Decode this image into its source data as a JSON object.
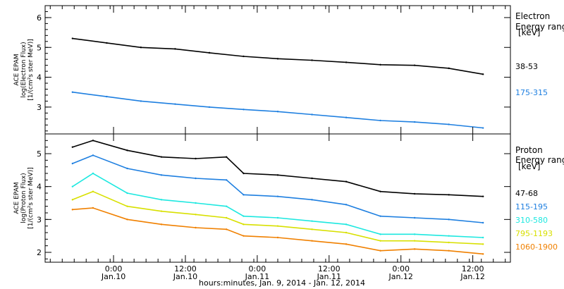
{
  "chart_data": [
    {
      "type": "line",
      "panel": "electron",
      "ylabel": [
        "ACE EPAM",
        "log(Electron Flux)",
        "[1/(cm²s ster MeV)]"
      ],
      "ylim": [
        2.1,
        6.4
      ],
      "yticks": [
        3,
        4,
        5,
        6
      ],
      "legend_title": [
        "Electron",
        "Energy range",
        "[keV]"
      ],
      "series": [
        {
          "name": "38-53",
          "color": "#000000",
          "x": [
            0.0,
            0.5,
            1.0,
            1.5,
            2.0,
            2.5,
            3.0,
            3.5,
            4.0,
            4.5,
            5.0,
            5.5,
            6.0
          ],
          "values": [
            5.3,
            5.15,
            5.0,
            4.95,
            4.82,
            4.7,
            4.62,
            4.57,
            4.5,
            4.42,
            4.4,
            4.3,
            4.1
          ]
        },
        {
          "name": "175-315",
          "color": "#1e7fe0",
          "x": [
            0.0,
            0.5,
            1.0,
            1.5,
            2.0,
            2.5,
            3.0,
            3.5,
            4.0,
            4.5,
            5.0,
            5.5,
            6.0
          ],
          "values": [
            3.5,
            3.35,
            3.2,
            3.1,
            3.0,
            2.92,
            2.85,
            2.75,
            2.65,
            2.55,
            2.5,
            2.42,
            2.3
          ]
        }
      ]
    },
    {
      "type": "line",
      "panel": "proton",
      "ylabel": [
        "ACE EPAM",
        "log(Proton Flux)",
        "[1/(cm²s ster MeV)]"
      ],
      "ylim": [
        1.7,
        5.6
      ],
      "yticks": [
        2,
        3,
        4,
        5
      ],
      "legend_title": [
        "Proton",
        "Energy range",
        "[keV]"
      ],
      "xticks": [
        {
          "time": "0:00",
          "date": "Jan.10"
        },
        {
          "time": "12:00",
          "date": "Jan.10"
        },
        {
          "time": "0:00",
          "date": "Jan.11"
        },
        {
          "time": "12:00",
          "date": "Jan.11"
        },
        {
          "time": "0:00",
          "date": "Jan.12"
        },
        {
          "time": "12:00",
          "date": "Jan.12"
        }
      ],
      "xlabel": "hours:minutes, Jan.  9, 2014 - Jan. 12, 2014",
      "series": [
        {
          "name": "47-68",
          "color": "#000000",
          "x": [
            0.0,
            0.3,
            0.8,
            1.3,
            1.8,
            2.25,
            2.5,
            3.0,
            3.5,
            4.0,
            4.5,
            5.0,
            5.5,
            6.0
          ],
          "values": [
            5.2,
            5.4,
            5.1,
            4.9,
            4.85,
            4.9,
            4.4,
            4.35,
            4.25,
            4.15,
            3.85,
            3.78,
            3.75,
            3.7
          ]
        },
        {
          "name": "115-195",
          "color": "#1e7fe0",
          "x": [
            0.0,
            0.3,
            0.8,
            1.3,
            1.8,
            2.25,
            2.5,
            3.0,
            3.5,
            4.0,
            4.5,
            5.0,
            5.5,
            6.0
          ],
          "values": [
            4.7,
            4.95,
            4.55,
            4.35,
            4.25,
            4.2,
            3.75,
            3.7,
            3.6,
            3.45,
            3.1,
            3.05,
            3.0,
            2.9
          ]
        },
        {
          "name": "310-580",
          "color": "#1ee8e0",
          "x": [
            0.0,
            0.3,
            0.8,
            1.3,
            1.8,
            2.25,
            2.5,
            3.0,
            3.5,
            4.0,
            4.5,
            5.0,
            5.5,
            6.0
          ],
          "values": [
            4.0,
            4.4,
            3.8,
            3.6,
            3.5,
            3.4,
            3.1,
            3.05,
            2.95,
            2.85,
            2.55,
            2.55,
            2.5,
            2.45
          ]
        },
        {
          "name": "795-1193",
          "color": "#d8e000",
          "x": [
            0.0,
            0.3,
            0.8,
            1.3,
            1.8,
            2.25,
            2.5,
            3.0,
            3.5,
            4.0,
            4.5,
            5.0,
            5.5,
            6.0
          ],
          "values": [
            3.6,
            3.85,
            3.4,
            3.25,
            3.15,
            3.05,
            2.85,
            2.8,
            2.7,
            2.6,
            2.35,
            2.35,
            2.3,
            2.25
          ]
        },
        {
          "name": "1060-1900",
          "color": "#f08000",
          "x": [
            0.0,
            0.3,
            0.8,
            1.3,
            1.8,
            2.25,
            2.5,
            3.0,
            3.5,
            4.0,
            4.5,
            5.0,
            5.5,
            6.0
          ],
          "values": [
            3.3,
            3.35,
            3.0,
            2.85,
            2.75,
            2.7,
            2.5,
            2.45,
            2.35,
            2.25,
            2.05,
            2.1,
            2.05,
            1.95
          ]
        }
      ]
    }
  ]
}
